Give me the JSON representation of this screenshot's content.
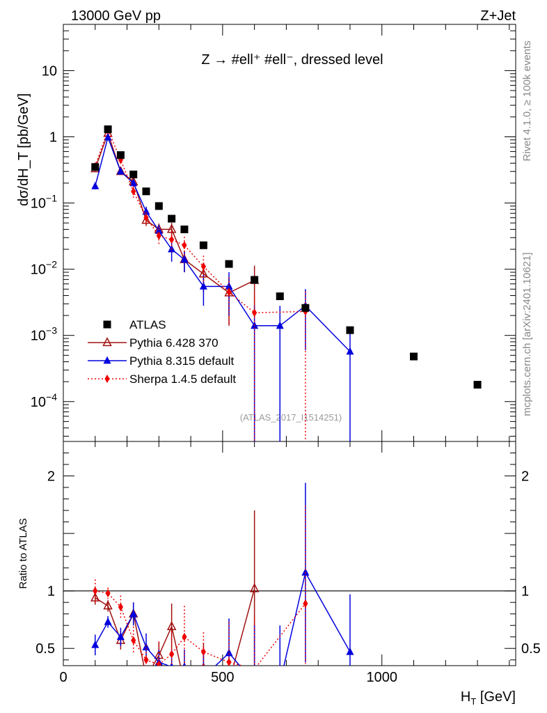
{
  "header": {
    "left": "13000 GeV pp",
    "right": "Z+Jet"
  },
  "side_labels": {
    "rivet": "Rivet 4.1.0, ≥ 100k events",
    "mcplots": "mcplots.cern.ch [arXiv:2401.10621]"
  },
  "chart_data": {
    "type": "scatter",
    "title": "Z → #ell⁺ #ell⁻, dressed level",
    "analysis_tag": "(ATLAS_2017_I1514251)",
    "xlabel_main": "H",
    "xlabel_sub": "T",
    "xlabel_unit": " [GeV]",
    "ylabel_top": "dσ/dH_T [pb/GeV]",
    "ylabel_ratio": "Ratio to ATLAS",
    "xlim": [
      0,
      1420
    ],
    "ylim_top": [
      2.5e-05,
      50
    ],
    "ylim_ratio": [
      0.35,
      2.3
    ],
    "x_ticks": [
      0,
      500,
      1000
    ],
    "y_ticks_top": [
      {
        "value": 10,
        "base": "10",
        "exp": ""
      },
      {
        "value": 1,
        "base": "1",
        "exp": ""
      },
      {
        "value": 0.1,
        "base": "10",
        "exp": "−1"
      },
      {
        "value": 0.01,
        "base": "10",
        "exp": "−2"
      },
      {
        "value": 0.001,
        "base": "10",
        "exp": "−3"
      },
      {
        "value": 0.0001,
        "base": "10",
        "exp": "−4"
      }
    ],
    "y_ticks_ratio": [
      0.5,
      1,
      2
    ],
    "series": [
      {
        "name": "ATLAS",
        "color": "#000000",
        "marker": "square",
        "x": [
          100,
          140,
          180,
          220,
          260,
          300,
          340,
          380,
          440,
          520,
          600,
          680,
          760,
          900,
          1100,
          1300
        ],
        "y": [
          0.35,
          1.3,
          0.53,
          0.27,
          0.15,
          0.09,
          0.058,
          0.04,
          0.023,
          0.012,
          0.0069,
          0.0039,
          0.0026,
          0.0012,
          0.00048,
          0.00018
        ],
        "ratio": [
          1,
          1,
          1,
          1,
          1,
          1,
          1,
          1,
          1,
          1,
          1,
          1,
          1,
          1,
          1,
          1
        ]
      },
      {
        "name": "Pythia 6.428 370",
        "color": "#a01010",
        "marker": "triangle-open",
        "line": "solid",
        "x": [
          100,
          140,
          180,
          220,
          260,
          300,
          340,
          380,
          440,
          520,
          600
        ],
        "y": [
          0.33,
          1.13,
          0.3,
          0.21,
          0.055,
          0.04,
          0.04,
          0.014,
          0.0085,
          0.0044,
          0.0068
        ],
        "err": [
          0.03,
          0.1,
          0.03,
          0.025,
          0.01,
          0.009,
          0.01,
          0.005,
          0.004,
          0.003,
          0.0045
        ],
        "ratio": [
          0.94,
          0.87,
          0.57,
          0.8,
          0.25,
          0.44,
          0.69,
          0.2,
          0.33,
          0.2,
          1.02
        ],
        "ratio_err": [
          0.06,
          0.05,
          0.08,
          0.1,
          0.1,
          0.12,
          0.2,
          0.12,
          0.22,
          0.2,
          0.68
        ]
      },
      {
        "name": "Pythia 8.315 default",
        "color": "#0000dd",
        "marker": "triangle",
        "line": "solid",
        "x": [
          100,
          140,
          180,
          220,
          260,
          300,
          340,
          380,
          440,
          520,
          600,
          680,
          760,
          900
        ],
        "y": [
          0.18,
          0.98,
          0.3,
          0.2,
          0.074,
          0.038,
          0.02,
          0.014,
          0.0055,
          0.0055,
          0.0014,
          0.0014,
          0.0028,
          0.00057
        ],
        "err": [
          0.02,
          0.09,
          0.03,
          0.025,
          0.014,
          0.009,
          0.007,
          0.005,
          0.0027,
          0.0035,
          0.0014,
          0.0014,
          0.0022,
          0.00057
        ],
        "ratio": [
          0.53,
          0.73,
          0.6,
          0.8,
          0.51,
          0.38,
          0.34,
          0.34,
          0.25,
          0.46,
          0.2,
          0.2,
          1.16,
          0.47
        ],
        "ratio_err": [
          0.09,
          0.05,
          0.08,
          0.1,
          0.12,
          0.12,
          0.15,
          0.15,
          0.2,
          0.3,
          0.5,
          0.5,
          0.78,
          0.5
        ]
      },
      {
        "name": "Sherpa 1.4.5 default",
        "color": "#ee0000",
        "marker": "diamond",
        "line": "dotted",
        "x": [
          100,
          140,
          180,
          220,
          260,
          300,
          340,
          380,
          440,
          520,
          600,
          760
        ],
        "y": [
          0.36,
          1.28,
          0.45,
          0.15,
          0.06,
          0.032,
          0.028,
          0.023,
          0.011,
          0.0045,
          0.0022,
          0.0023
        ],
        "err": [
          0.04,
          0.12,
          0.06,
          0.03,
          0.013,
          0.009,
          0.01,
          0.008,
          0.005,
          0.003,
          0.0022,
          0.0023
        ],
        "ratio": [
          1.0,
          0.98,
          0.86,
          0.57,
          0.4,
          0.36,
          0.45,
          0.6,
          0.47,
          0.38,
          0.32,
          0.89
        ],
        "ratio_err": [
          0.1,
          0.05,
          0.1,
          0.12,
          0.13,
          0.2,
          0.2,
          0.27,
          0.17,
          0.35,
          0.45,
          0.85
        ]
      }
    ]
  }
}
